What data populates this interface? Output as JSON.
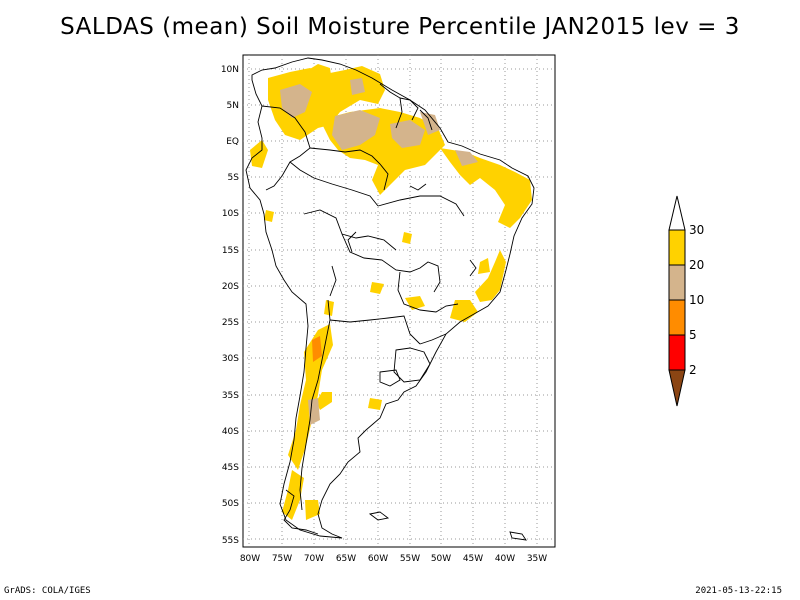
{
  "title": "SALDAS (mean) Soil Moisture Percentile JAN2015 lev = 3",
  "footer": {
    "left": "GrADS: COLA/IGES",
    "right": "2021-05-13-22:15"
  },
  "map": {
    "lat_ticks": [
      "10N",
      "5N",
      "EQ",
      "5S",
      "10S",
      "15S",
      "20S",
      "25S",
      "30S",
      "35S",
      "40S",
      "45S",
      "50S",
      "55S"
    ],
    "lon_ticks": [
      "80W",
      "75W",
      "70W",
      "65W",
      "60W",
      "55W",
      "50W",
      "45W",
      "40W",
      "35W"
    ],
    "lat_range": [
      -56,
      12
    ],
    "lon_range": [
      -81,
      -34
    ]
  },
  "colorbar": {
    "labels": [
      "30",
      "20",
      "10",
      "5",
      "2"
    ],
    "colors": {
      "above_30": "#ffffff",
      "20_30": "#ffd200",
      "10_20": "#d4b48c",
      "5_10": "#ff8c00",
      "2_5": "#ff0000",
      "below_2": "#8b4513"
    }
  }
}
